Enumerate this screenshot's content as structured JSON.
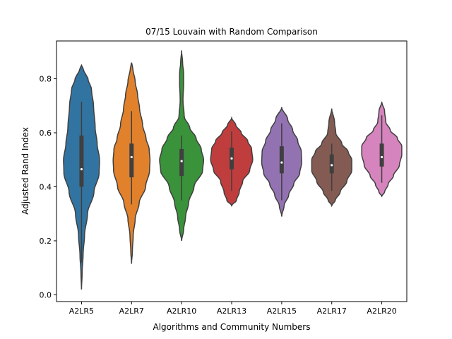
{
  "chart_data": {
    "type": "violin",
    "title": "07/15 Louvain with Random Comparison",
    "xlabel": "Algorithms and Community Numbers",
    "ylabel": "Adjusted Rand Index",
    "ylim": [
      -0.025,
      0.94
    ],
    "yticks": [
      0.0,
      0.2,
      0.4,
      0.6,
      0.8
    ],
    "ytick_labels": [
      "0.0",
      "0.2",
      "0.4",
      "0.6",
      "0.8"
    ],
    "grid": false,
    "categories": [
      "A2LR5",
      "A2LR7",
      "A2LR10",
      "A2LR13",
      "A2LR15",
      "A2LR17",
      "A2LR20"
    ],
    "series": [
      {
        "category": "A2LR5",
        "color": "#3274a1",
        "min": 0.02,
        "max": 0.85,
        "q1": 0.4,
        "median": 0.465,
        "q3": 0.59,
        "whisker_low": 0.12,
        "whisker_high": 0.715,
        "density": [
          [
            0.02,
            0
          ],
          [
            0.08,
            0.03
          ],
          [
            0.15,
            0.08
          ],
          [
            0.22,
            0.15
          ],
          [
            0.3,
            0.3
          ],
          [
            0.38,
            0.62
          ],
          [
            0.45,
            0.88
          ],
          [
            0.5,
            0.9
          ],
          [
            0.56,
            0.78
          ],
          [
            0.62,
            0.68
          ],
          [
            0.7,
            0.6
          ],
          [
            0.76,
            0.5
          ],
          [
            0.8,
            0.32
          ],
          [
            0.83,
            0.12
          ],
          [
            0.85,
            0
          ]
        ]
      },
      {
        "category": "A2LR7",
        "color": "#e1812c",
        "min": 0.115,
        "max": 0.86,
        "q1": 0.435,
        "median": 0.51,
        "q3": 0.56,
        "whisker_low": 0.335,
        "whisker_high": 0.68,
        "density": [
          [
            0.115,
            0
          ],
          [
            0.16,
            0.04
          ],
          [
            0.22,
            0.08
          ],
          [
            0.28,
            0.18
          ],
          [
            0.34,
            0.38
          ],
          [
            0.4,
            0.7
          ],
          [
            0.46,
            0.9
          ],
          [
            0.5,
            0.92
          ],
          [
            0.54,
            0.88
          ],
          [
            0.58,
            0.72
          ],
          [
            0.63,
            0.55
          ],
          [
            0.69,
            0.4
          ],
          [
            0.74,
            0.3
          ],
          [
            0.79,
            0.18
          ],
          [
            0.84,
            0.06
          ],
          [
            0.86,
            0
          ]
        ]
      },
      {
        "category": "A2LR10",
        "color": "#3a923a",
        "min": 0.2,
        "max": 0.905,
        "q1": 0.44,
        "median": 0.495,
        "q3": 0.54,
        "whisker_low": 0.35,
        "whisker_high": 0.59,
        "density": [
          [
            0.2,
            0
          ],
          [
            0.24,
            0.1
          ],
          [
            0.29,
            0.2
          ],
          [
            0.34,
            0.35
          ],
          [
            0.4,
            0.62
          ],
          [
            0.46,
            1.05
          ],
          [
            0.5,
            1.1
          ],
          [
            0.54,
            0.98
          ],
          [
            0.58,
            0.72
          ],
          [
            0.62,
            0.4
          ],
          [
            0.66,
            0.13
          ],
          [
            0.72,
            0.07
          ],
          [
            0.78,
            0.1
          ],
          [
            0.82,
            0.1
          ],
          [
            0.86,
            0.05
          ],
          [
            0.905,
            0
          ]
        ]
      },
      {
        "category": "A2LR13",
        "color": "#c03d3e",
        "min": 0.33,
        "max": 0.655,
        "q1": 0.465,
        "median": 0.505,
        "q3": 0.545,
        "whisker_low": 0.385,
        "whisker_high": 0.605,
        "density": [
          [
            0.33,
            0
          ],
          [
            0.35,
            0.24
          ],
          [
            0.38,
            0.38
          ],
          [
            0.42,
            0.55
          ],
          [
            0.46,
            0.9
          ],
          [
            0.5,
            1.05
          ],
          [
            0.54,
            1.0
          ],
          [
            0.57,
            0.8
          ],
          [
            0.6,
            0.48
          ],
          [
            0.63,
            0.2
          ],
          [
            0.655,
            0
          ]
        ]
      },
      {
        "category": "A2LR15",
        "color": "#9372b2",
        "min": 0.29,
        "max": 0.695,
        "q1": 0.45,
        "median": 0.49,
        "q3": 0.55,
        "whisker_low": 0.35,
        "whisker_high": 0.635,
        "density": [
          [
            0.29,
            0
          ],
          [
            0.33,
            0.12
          ],
          [
            0.37,
            0.35
          ],
          [
            0.41,
            0.6
          ],
          [
            0.45,
            0.9
          ],
          [
            0.49,
            1.0
          ],
          [
            0.53,
            0.98
          ],
          [
            0.57,
            0.8
          ],
          [
            0.61,
            0.55
          ],
          [
            0.65,
            0.3
          ],
          [
            0.695,
            0
          ]
        ]
      },
      {
        "category": "A2LR17",
        "color": "#845b53",
        "min": 0.33,
        "max": 0.69,
        "q1": 0.45,
        "median": 0.48,
        "q3": 0.52,
        "whisker_low": 0.385,
        "whisker_high": 0.56,
        "density": [
          [
            0.33,
            0
          ],
          [
            0.35,
            0.18
          ],
          [
            0.38,
            0.42
          ],
          [
            0.42,
            0.75
          ],
          [
            0.46,
            1.0
          ],
          [
            0.5,
            1.0
          ],
          [
            0.53,
            0.82
          ],
          [
            0.56,
            0.5
          ],
          [
            0.6,
            0.2
          ],
          [
            0.64,
            0.14
          ],
          [
            0.69,
            0
          ]
        ]
      },
      {
        "category": "A2LR20",
        "color": "#d684bd",
        "min": 0.365,
        "max": 0.715,
        "q1": 0.475,
        "median": 0.51,
        "q3": 0.56,
        "whisker_low": 0.415,
        "whisker_high": 0.665,
        "density": [
          [
            0.365,
            0
          ],
          [
            0.38,
            0.14
          ],
          [
            0.41,
            0.32
          ],
          [
            0.44,
            0.58
          ],
          [
            0.48,
            0.88
          ],
          [
            0.52,
            1.0
          ],
          [
            0.55,
            1.0
          ],
          [
            0.58,
            0.78
          ],
          [
            0.61,
            0.42
          ],
          [
            0.64,
            0.2
          ],
          [
            0.68,
            0.14
          ],
          [
            0.715,
            0
          ]
        ]
      }
    ]
  }
}
